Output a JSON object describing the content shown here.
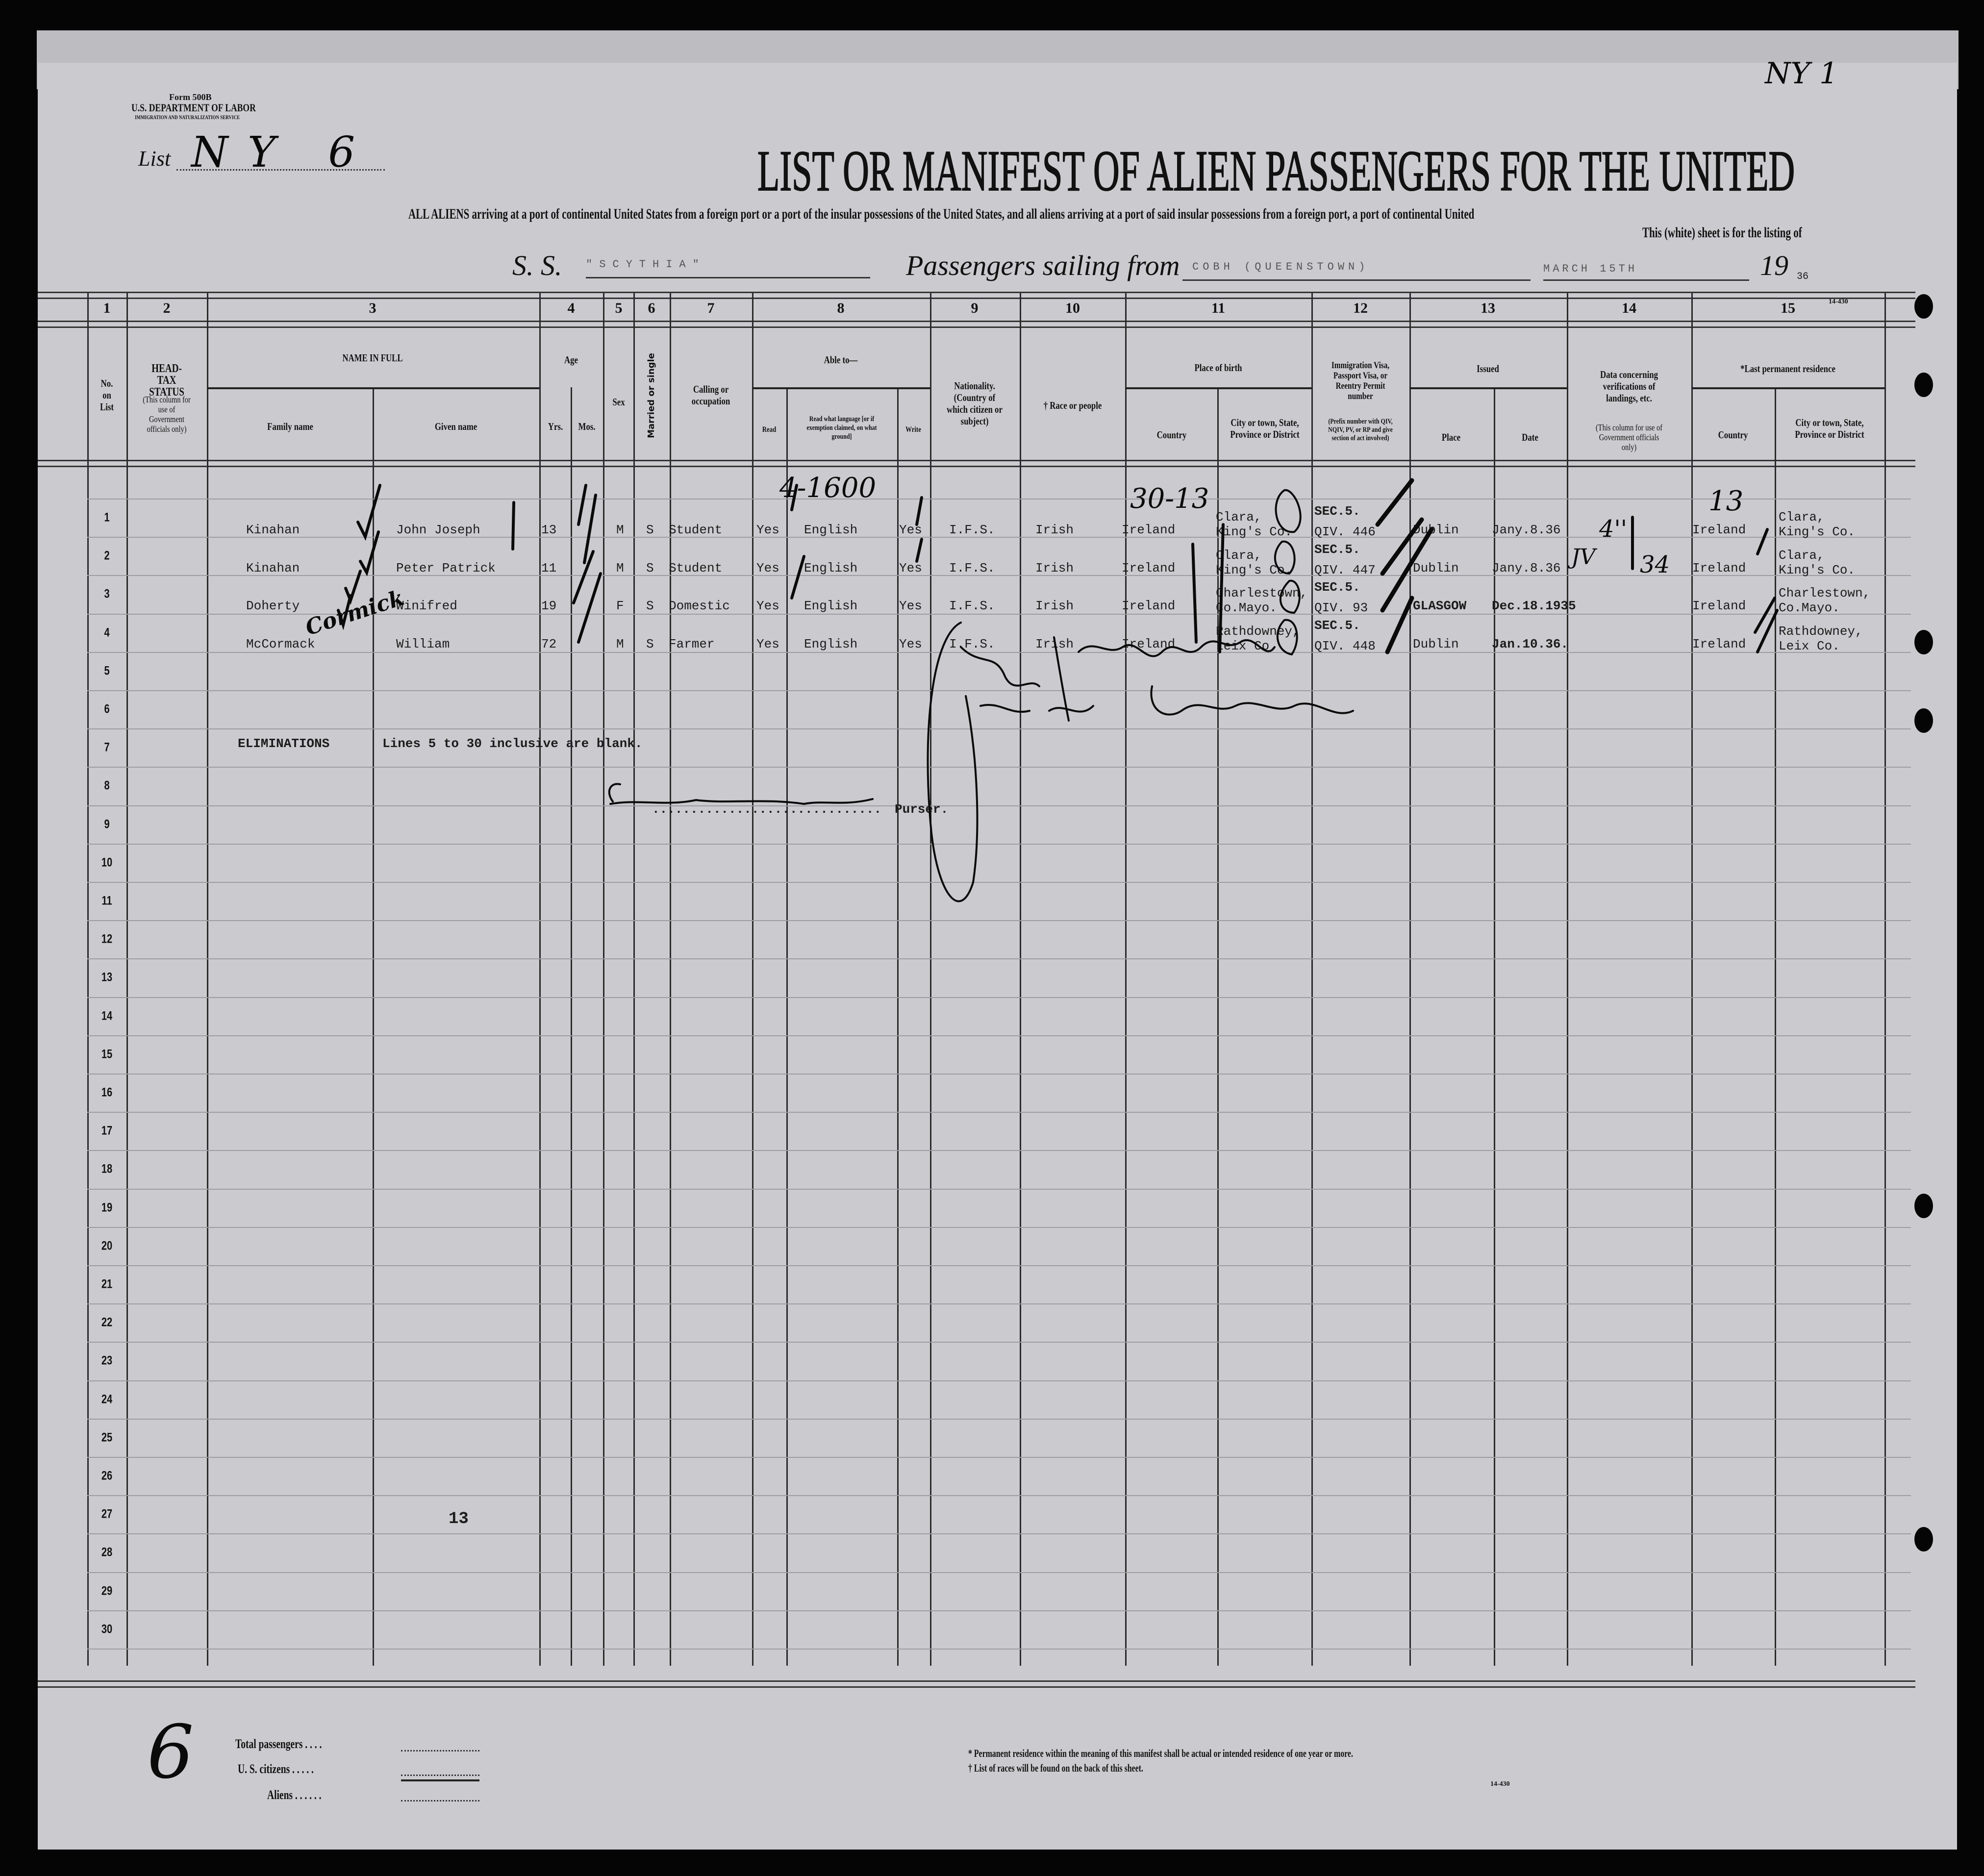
{
  "form": {
    "form_number": "Form 500B",
    "department": "U.S. DEPARTMENT OF LABOR",
    "service": "IMMIGRATION AND NATURALIZATION SERVICE",
    "list_label": "List",
    "list_value": "NY 6",
    "corner_mark": "NY 1",
    "title": "LIST OR MANIFEST OF ALIEN PASSENGERS FOR THE UNITED",
    "subtitle": "ALL ALIENS arriving at a port of continental United States from a foreign port or a port of the insular possessions of the United States, and all aliens arriving at a port of said insular possessions from a foreign port, a port of continental United",
    "subtitle2": "This (white) sheet is for the listing of",
    "ss_label": "S. S.",
    "ship": "\"SCYTHIA\"",
    "sailing_label": "Passengers sailing from",
    "port": "COBH (QUEENSTOWN)",
    "date": "MARCH 15TH",
    "year_prefix": "19",
    "year_suffix": "36",
    "form_code_top": "14-430"
  },
  "columns": {
    "numbers": [
      "1",
      "2",
      "3",
      "4",
      "5",
      "6",
      "7",
      "8",
      "9",
      "10",
      "11",
      "12",
      "13",
      "14",
      "15"
    ],
    "no_on_list": "No. on List",
    "head_tax": "HEAD-TAX STATUS",
    "head_tax_note": "(This column for use of Government officials only)",
    "name_in_full": "NAME IN FULL",
    "family_name": "Family name",
    "given_name": "Given name",
    "age": "Age",
    "yrs": "Yrs.",
    "mos": "Mos.",
    "sex": "Sex",
    "married": "Married or single",
    "calling": "Calling or occupation",
    "able_to": "Able to—",
    "read": "Read",
    "read_language": "Read what language [or if exemption claimed, on what ground]",
    "write": "Write",
    "nationality": "Nationality. (Country of which citizen or subject)",
    "race": "† Race or people",
    "place_of_birth": "Place of birth",
    "country": "Country",
    "city": "City or town, State, Province or District",
    "visa": "Immigration Visa, Passport Visa, or Reentry Permit number",
    "visa_note": "(Prefix number with QIV, NQIV, PV, or RP and give section of act involved)",
    "issued": "Issued",
    "place": "Place",
    "date": "Date",
    "verifications": "Data concerning verifications of landings, etc.",
    "verifications_note": "(This column for use of Government officials only)",
    "last_residence": "*Last permanent residence",
    "res_country": "Country",
    "res_city": "City or town, State, Province or District"
  },
  "row_numbers": [
    "1",
    "2",
    "3",
    "4",
    "5",
    "6",
    "7",
    "8",
    "9",
    "10",
    "11",
    "12",
    "13",
    "14",
    "15",
    "16",
    "17",
    "18",
    "19",
    "20",
    "21",
    "22",
    "23",
    "24",
    "25",
    "26",
    "27",
    "28",
    "29",
    "30"
  ],
  "passengers": [
    {
      "family": "Kinahan",
      "given": "John Joseph",
      "yrs": "13",
      "sex": "M",
      "married": "S",
      "occupation": "Student",
      "read": "Yes",
      "language": "English",
      "write": "Yes",
      "nationality": "I.F.S.",
      "race": "Irish",
      "country": "Ireland",
      "city1": "Clara,",
      "city2": "King's Co.",
      "visa1": "SEC.5.",
      "visa2": "QIV. 446",
      "place": "Dublin",
      "date": "Jany.8.36",
      "res_country": "Ireland",
      "res_city1": "Clara,",
      "res_city2": "King's Co."
    },
    {
      "family": "Kinahan",
      "given": "Peter Patrick",
      "yrs": "11",
      "sex": "M",
      "married": "S",
      "occupation": "Student",
      "read": "Yes",
      "language": "English",
      "write": "Yes",
      "nationality": "I.F.S.",
      "race": "Irish",
      "country": "Ireland",
      "city1": "Clara,",
      "city2": "King's Co.",
      "visa1": "SEC.5.",
      "visa2": "QIV. 447",
      "place": "Dublin",
      "date": "Jany.8.36",
      "res_country": "Ireland",
      "res_city1": "Clara,",
      "res_city2": "King's Co."
    },
    {
      "family": "Doherty",
      "given": "Winifred",
      "yrs": "19",
      "sex": "F",
      "married": "S",
      "occupation": "Domestic",
      "read": "Yes",
      "language": "English",
      "write": "Yes",
      "nationality": "I.F.S.",
      "race": "Irish",
      "country": "Ireland",
      "city1": "Charlestown,",
      "city2": "Co.Mayo.",
      "visa1": "SEC.5.",
      "visa2": "QIV. 93",
      "place": "GLASGOW",
      "date": "Dec.18.1935",
      "res_country": "Ireland",
      "res_city1": "Charlestown,",
      "res_city2": "Co.Mayo."
    },
    {
      "family": "McCormack",
      "given": "William",
      "yrs": "72",
      "sex": "M",
      "married": "S",
      "occupation": "Farmer",
      "read": "Yes",
      "language": "English",
      "write": "Yes",
      "nationality": "I.F.S.",
      "race": "Irish",
      "country": "Ireland",
      "city1": "Rathdowney,",
      "city2": "Leix Co.",
      "visa1": "SEC.5.",
      "visa2": "QIV. 448",
      "place": "Dublin",
      "date": "Jan.10.36.",
      "res_country": "Ireland",
      "res_city1": "Rathdowney,",
      "res_city2": "Leix Co."
    }
  ],
  "eliminations": {
    "label": "ELIMINATIONS",
    "text": "Lines 5 to 30 inclusive are blank.",
    "purser_dots": "..............................",
    "purser": "Purser."
  },
  "annotations": {
    "language_code": "4-1600",
    "birth_code": "30-13",
    "residence_code": "13",
    "verif_a": "JV",
    "verif_b": "4''",
    "verif_c": "34",
    "cormick": "Cormick",
    "row27_mark": "13",
    "footer_number": "6"
  },
  "footer": {
    "total_passengers": "Total passengers",
    "us_citizens": "U. S. citizens",
    "aliens": "Aliens",
    "note1": "* Permanent residence within the meaning of this manifest shall be actual or intended residence of one year or more.",
    "note2": "† List of races will be found on the back of this sheet.",
    "form_code": "14-430"
  }
}
